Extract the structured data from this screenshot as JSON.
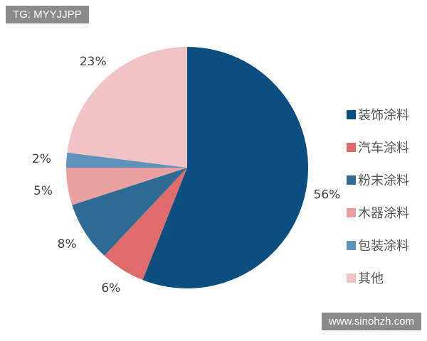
{
  "watermarks": {
    "top_left": "TG: MYYJJPP",
    "bottom_right": "www.sinohzh.com"
  },
  "chart_data": {
    "type": "pie",
    "categories": [
      "装饰涂料",
      "汽车涂料",
      "粉末涂料",
      "木器涂料",
      "包装涂料",
      "其他"
    ],
    "values": [
      56,
      6,
      8,
      5,
      2,
      23
    ],
    "data_labels": [
      "56%",
      "6%",
      "8%",
      "5%",
      "2%",
      "23%"
    ],
    "colors": [
      "#0b4f80",
      "#e06b6b",
      "#2e6b94",
      "#eba0a0",
      "#5d93b8",
      "#f1c3c5"
    ],
    "start_angle": "12 o'clock",
    "direction": "clockwise",
    "legend_placement": "right"
  }
}
